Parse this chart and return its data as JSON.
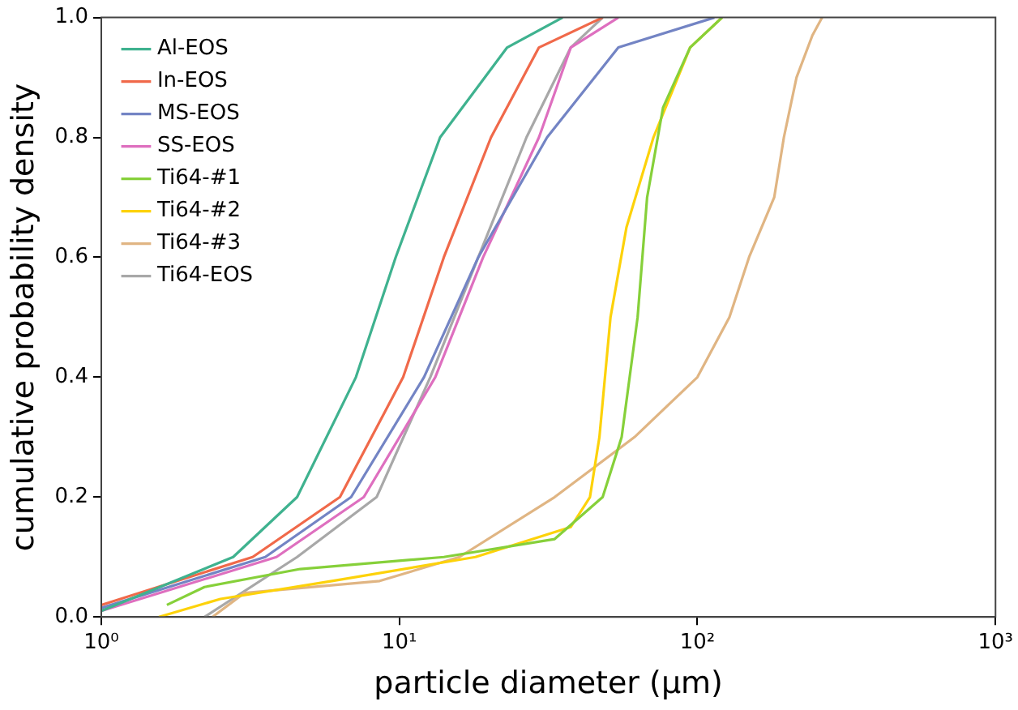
{
  "chart_data": {
    "type": "line",
    "xlabel": "particle diameter (μm)",
    "ylabel": "cumulative probability density",
    "log": "x",
    "grid": false,
    "legend": "top left",
    "marker": "none",
    "line_style": "solid",
    "xlim": [
      1,
      1000
    ],
    "xticks": [
      {
        "value": 1,
        "label": "10⁰"
      },
      {
        "value": 10,
        "label": "10¹"
      },
      {
        "value": 100,
        "label": "10²"
      },
      {
        "value": 1000,
        "label": "10³"
      }
    ],
    "ylim": [
      0,
      1
    ],
    "yticks": [
      {
        "value": 0,
        "label": "0.0"
      },
      {
        "value": 0.2,
        "label": "0.2"
      },
      {
        "value": 0.4,
        "label": "0.4"
      },
      {
        "value": 0.6,
        "label": "0.6"
      },
      {
        "value": 0.8,
        "label": "0.8"
      },
      {
        "value": 1,
        "label": "1.0"
      }
    ],
    "series": [
      {
        "name": "Al-EOS",
        "color": "#3fb28f",
        "x": [
          1,
          2.77,
          4.54,
          7.15,
          9.72,
          13.7,
          23.0,
          35.3
        ],
        "values": [
          0.01,
          0.1,
          0.2,
          0.4,
          0.6,
          0.8,
          0.95,
          1.0
        ]
      },
      {
        "name": "In-EOS",
        "color": "#f0694a",
        "x": [
          1,
          3.22,
          6.32,
          10.3,
          14.1,
          20.3,
          29.4,
          48.1
        ],
        "values": [
          0.02,
          0.1,
          0.2,
          0.4,
          0.6,
          0.8,
          0.95,
          1.0
        ]
      },
      {
        "name": "MS-EOS",
        "color": "#7384c4",
        "x": [
          1,
          3.55,
          6.89,
          12.1,
          18.4,
          31.3,
          54.3,
          114
        ],
        "values": [
          0.015,
          0.1,
          0.2,
          0.4,
          0.6,
          0.8,
          0.95,
          1.0
        ]
      },
      {
        "name": "SS-EOS",
        "color": "#de6fbf",
        "x": [
          1,
          3.87,
          7.6,
          13.2,
          19.1,
          29.4,
          37.6,
          54.3
        ],
        "values": [
          0.01,
          0.1,
          0.2,
          0.4,
          0.6,
          0.8,
          0.95,
          1.0
        ]
      },
      {
        "name": "Ti64-#1",
        "color": "#86d03a",
        "x": [
          1.66,
          2.22,
          4.65,
          14.1,
          33.2,
          48.1,
          55.7,
          63.0,
          67.8,
          76.7,
          94.5,
          121
        ],
        "values": [
          0.02,
          0.05,
          0.08,
          0.1,
          0.13,
          0.2,
          0.3,
          0.5,
          0.7,
          0.85,
          0.95,
          1.0
        ]
      },
      {
        "name": "Ti64-#2",
        "color": "#fdd20a",
        "x": [
          1.56,
          2.51,
          5.94,
          18.0,
          37.6,
          43.6,
          46.9,
          51.1,
          57.8,
          71.2,
          94.5,
          121
        ],
        "values": [
          0.0,
          0.03,
          0.06,
          0.1,
          0.15,
          0.2,
          0.3,
          0.5,
          0.65,
          0.8,
          0.95,
          1.0
        ]
      },
      {
        "name": "Ti64-#3",
        "color": "#e0b583",
        "x": [
          2.36,
          3.02,
          8.59,
          15.9,
          33.2,
          61.5,
          100,
          128,
          149,
          181,
          195,
          215,
          243,
          262
        ],
        "values": [
          0.0,
          0.04,
          0.06,
          0.1,
          0.2,
          0.3,
          0.4,
          0.5,
          0.6,
          0.7,
          0.8,
          0.9,
          0.97,
          1.0
        ]
      },
      {
        "name": "Ti64-EOS",
        "color": "#a8a8a8",
        "x": [
          2.22,
          4.54,
          8.39,
          12.7,
          18.4,
          26.7,
          37.6,
          48.1
        ],
        "values": [
          0.0,
          0.1,
          0.2,
          0.4,
          0.6,
          0.8,
          0.95,
          1.0
        ]
      }
    ]
  }
}
